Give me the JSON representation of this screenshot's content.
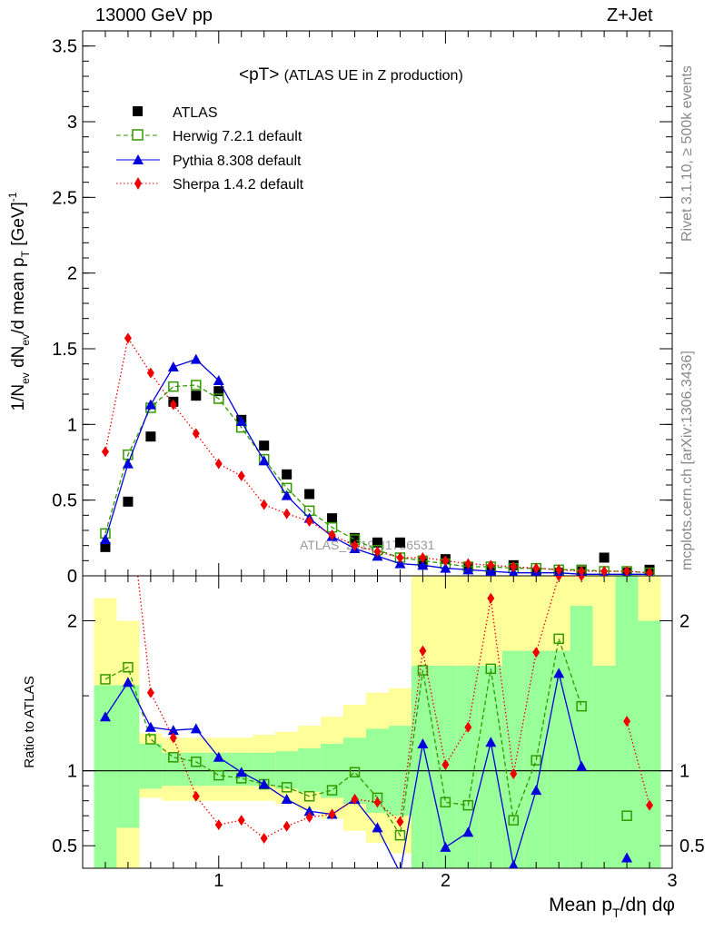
{
  "header": {
    "left": "13000 GeV pp",
    "right": "Z+Jet"
  },
  "side_text": {
    "top": "Rivet 3.1.10, ≥ 500k events",
    "bottom": "mcplots.cern.ch [arXiv:1306.3436]"
  },
  "chart_data": [
    {
      "type": "scatter",
      "title": "<pT>",
      "subtitle": "(ATLAS UE in Z production)",
      "watermark": "ATLAS_2019_I1736531",
      "xlabel": "Mean p_T/dη dφ",
      "ylabel": "1/N_ev dN_ev/d mean p_T [GeV]^-1",
      "xlim": [
        0.4,
        3.0
      ],
      "ylim": [
        0,
        3.6
      ],
      "yticks": [
        "0",
        "0.5",
        "1",
        "1.5",
        "2",
        "2.5",
        "3",
        "3.5"
      ],
      "xticks": [
        "1",
        "2",
        "3"
      ],
      "legend_position": "top-left",
      "x": [
        0.5,
        0.6,
        0.7,
        0.8,
        0.9,
        1.0,
        1.1,
        1.2,
        1.3,
        1.4,
        1.5,
        1.6,
        1.7,
        1.8,
        1.9,
        2.0,
        2.1,
        2.2,
        2.3,
        2.4,
        2.5,
        2.6,
        2.7,
        2.8,
        2.9
      ],
      "series": [
        {
          "name": "ATLAS",
          "color": "#000000",
          "marker": "square-filled",
          "values": [
            0.19,
            0.49,
            0.92,
            1.15,
            1.19,
            1.22,
            1.03,
            0.86,
            0.67,
            0.54,
            0.38,
            0.25,
            0.22,
            0.22,
            0.09,
            0.11,
            0.06,
            0.04,
            0.07,
            0.02,
            0.02,
            0.03,
            0.12,
            0.02,
            0.04
          ]
        },
        {
          "name": "Herwig 7.2.1 default",
          "color": "#339900",
          "marker": "square-open",
          "line": "dashed",
          "values": [
            0.28,
            0.8,
            1.11,
            1.25,
            1.26,
            1.17,
            0.98,
            0.77,
            0.58,
            0.43,
            0.32,
            0.24,
            0.17,
            0.12,
            0.1,
            0.08,
            0.06,
            0.06,
            0.05,
            0.05,
            0.04,
            0.04,
            0.03,
            0.03,
            0.02
          ]
        },
        {
          "name": "Pythia 8.308 default",
          "color": "#0000dd",
          "marker": "triangle-filled",
          "line": "solid",
          "values": [
            0.24,
            0.74,
            1.13,
            1.38,
            1.43,
            1.29,
            1.02,
            0.76,
            0.53,
            0.38,
            0.26,
            0.18,
            0.13,
            0.08,
            0.07,
            0.05,
            0.04,
            0.03,
            0.02,
            0.02,
            0.02,
            0.01,
            0.01,
            0.01,
            0.01
          ]
        },
        {
          "name": "Sherpa 1.4.2 default",
          "color": "#ee0000",
          "marker": "diamond-filled",
          "line": "dotted",
          "values": [
            0.82,
            1.57,
            1.34,
            1.13,
            0.94,
            0.74,
            0.66,
            0.47,
            0.41,
            0.36,
            0.27,
            0.2,
            0.16,
            0.12,
            0.12,
            0.1,
            0.08,
            0.07,
            0.06,
            0.05,
            0.04,
            0.03,
            0.03,
            0.03,
            0.02
          ]
        }
      ]
    },
    {
      "type": "line",
      "ylabel": "Ratio to ATLAS",
      "xlim": [
        0.4,
        3.0
      ],
      "ylim": [
        0.35,
        2.3
      ],
      "yticks": [
        "0.5",
        "1",
        "2"
      ],
      "reference_line": 1,
      "band_colors": {
        "inner": "#99ff99",
        "outer": "#ffff99"
      },
      "x": [
        0.5,
        0.6,
        0.7,
        0.8,
        0.9,
        1.0,
        1.1,
        1.2,
        1.3,
        1.4,
        1.5,
        1.6,
        1.7,
        1.8,
        1.9,
        2.0,
        2.1,
        2.2,
        2.3,
        2.4,
        2.5,
        2.6,
        2.7,
        2.8,
        2.9
      ],
      "band_inner": [
        [
          0.35,
          1.57
        ],
        [
          0.62,
          1.57
        ],
        [
          0.88,
          1.18
        ],
        [
          0.9,
          1.12
        ],
        [
          0.9,
          1.12
        ],
        [
          0.9,
          1.12
        ],
        [
          0.9,
          1.12
        ],
        [
          0.9,
          1.12
        ],
        [
          0.88,
          1.13
        ],
        [
          0.86,
          1.15
        ],
        [
          0.82,
          1.18
        ],
        [
          0.78,
          1.22
        ],
        [
          0.72,
          1.28
        ],
        [
          0.7,
          1.3
        ],
        [
          0.35,
          1.7
        ],
        [
          0.35,
          1.7
        ],
        [
          0.35,
          1.7
        ],
        [
          0.35,
          1.7
        ],
        [
          0.35,
          1.8
        ],
        [
          0.35,
          1.8
        ],
        [
          0.35,
          1.8
        ],
        [
          0.35,
          2.1
        ],
        [
          0.35,
          1.7
        ],
        [
          0.35,
          2.3
        ],
        [
          0.35,
          2.0
        ]
      ],
      "band_outer": [
        [
          0.35,
          2.15
        ],
        [
          0.35,
          2.0
        ],
        [
          0.82,
          1.25
        ],
        [
          0.8,
          1.22
        ],
        [
          0.8,
          1.22
        ],
        [
          0.8,
          1.22
        ],
        [
          0.8,
          1.22
        ],
        [
          0.8,
          1.24
        ],
        [
          0.78,
          1.26
        ],
        [
          0.74,
          1.3
        ],
        [
          0.68,
          1.36
        ],
        [
          0.6,
          1.44
        ],
        [
          0.52,
          1.52
        ],
        [
          0.45,
          1.55
        ],
        [
          0.35,
          2.3
        ],
        [
          0.35,
          2.3
        ],
        [
          0.35,
          2.3
        ],
        [
          0.35,
          2.3
        ],
        [
          0.35,
          2.3
        ],
        [
          0.35,
          2.3
        ],
        [
          0.35,
          2.3
        ],
        [
          0.35,
          2.3
        ],
        [
          0.35,
          2.3
        ],
        [
          0.35,
          2.3
        ],
        [
          0.35,
          2.3
        ]
      ],
      "series": [
        {
          "name": "Herwig 7.2.1 default",
          "color": "#339900",
          "marker": "square-open",
          "line": "dashed",
          "values": [
            1.61,
            1.69,
            1.21,
            1.09,
            1.06,
            0.97,
            0.95,
            0.91,
            0.89,
            0.83,
            0.87,
            0.99,
            0.82,
            0.57,
            1.67,
            0.79,
            0.77,
            1.68,
            0.67,
            1.07,
            1.88,
            1.43,
            null,
            0.7,
            null
          ]
        },
        {
          "name": "Pythia 8.308 default",
          "color": "#0000dd",
          "marker": "triangle-filled",
          "line": "solid",
          "values": [
            1.36,
            1.59,
            1.29,
            1.27,
            1.28,
            1.09,
            0.99,
            0.91,
            0.81,
            0.73,
            0.71,
            0.81,
            0.62,
            0.32,
            1.18,
            0.49,
            0.59,
            1.19,
            0.37,
            0.87,
            1.65,
            1.03,
            null,
            0.42,
            null
          ]
        },
        {
          "name": "Sherpa 1.4.2 default",
          "color": "#ee0000",
          "marker": "diamond-filled",
          "line": "dotted",
          "values": [
            null,
            2.9,
            1.52,
            1.22,
            0.83,
            0.64,
            0.67,
            0.55,
            0.63,
            0.69,
            0.71,
            0.81,
            0.79,
            0.66,
            1.8,
            1.04,
            1.29,
            2.15,
            0.98,
            1.79,
            2.3,
            2.3,
            null,
            1.33,
            0.77
          ]
        }
      ]
    }
  ]
}
